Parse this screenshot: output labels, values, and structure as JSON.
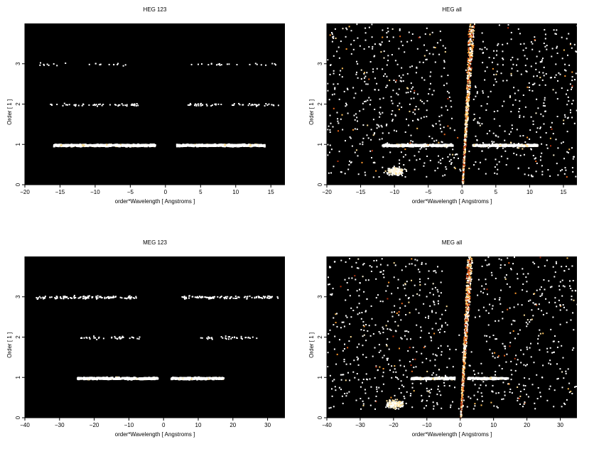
{
  "chart_data": [
    {
      "type": "heatmap",
      "title": "HEG 123",
      "xlabel": "order*Wavelength [ Angstroms ]",
      "ylabel": "Order [ 1 ]",
      "xlim": [
        -20,
        17
      ],
      "ylim": [
        0,
        4
      ],
      "xticks": [
        -20,
        -15,
        -10,
        -5,
        0,
        5,
        10,
        15
      ],
      "yticks": [
        0,
        1,
        2,
        3
      ],
      "background": "#000000",
      "bands": [
        {
          "order": 1,
          "x_ranges": [
            [
              -16,
              -1.5
            ],
            [
              1.5,
              14
            ]
          ],
          "intensity": "high"
        },
        {
          "order": 2,
          "x_ranges": [
            [
              -17,
              -4
            ],
            [
              3,
              16
            ]
          ],
          "intensity": "low"
        },
        {
          "order": 3,
          "x_ranges": [
            [
              -18,
              -5
            ],
            [
              3,
              16
            ]
          ],
          "intensity": "very low"
        }
      ]
    },
    {
      "type": "heatmap",
      "title": "HEG all",
      "xlabel": "order*Wavelength [ Angstroms ]",
      "ylabel": "Order [ 1 ]",
      "xlim": [
        -20,
        17
      ],
      "ylim": [
        0,
        4
      ],
      "xticks": [
        -20,
        -15,
        -10,
        -5,
        0,
        5,
        10,
        15
      ],
      "yticks": [
        0,
        1,
        2,
        3
      ],
      "background": "#000000",
      "bands": [
        {
          "order": 1,
          "x_ranges": [
            [
              -12,
              -1.5
            ],
            [
              1.5,
              11
            ]
          ],
          "intensity": "high"
        }
      ],
      "features": [
        "zeroth-order streak",
        "scattered background events",
        "low-order cluster near x=-10"
      ]
    },
    {
      "type": "heatmap",
      "title": "MEG 123",
      "xlabel": "order*Wavelength [ Angstroms ]",
      "ylabel": "Order [ 1 ]",
      "xlim": [
        -40,
        35
      ],
      "ylim": [
        0,
        4
      ],
      "xticks": [
        -40,
        -30,
        -20,
        -10,
        0,
        10,
        20,
        30
      ],
      "yticks": [
        0,
        1,
        2,
        3
      ],
      "background": "#000000",
      "bands": [
        {
          "order": 1,
          "x_ranges": [
            [
              -25,
              -2
            ],
            [
              2,
              17
            ]
          ],
          "intensity": "high"
        },
        {
          "order": 2,
          "x_ranges": [
            [
              -25,
              -7
            ],
            [
              10,
              27
            ]
          ],
          "intensity": "low"
        },
        {
          "order": 3,
          "x_ranges": [
            [
              -37,
              -8
            ],
            [
              5,
              33
            ]
          ],
          "intensity": "medium"
        }
      ]
    },
    {
      "type": "heatmap",
      "title": "MEG all",
      "xlabel": "order*Wavelength [ Angstroms ]",
      "ylabel": "Order [ 1 ]",
      "xlim": [
        -40,
        35
      ],
      "ylim": [
        0,
        4
      ],
      "xticks": [
        -40,
        -30,
        -20,
        -10,
        0,
        10,
        20,
        30
      ],
      "yticks": [
        0,
        1,
        2,
        3
      ],
      "background": "#000000",
      "bands": [
        {
          "order": 1,
          "x_ranges": [
            [
              -15,
              -2
            ],
            [
              2,
              14
            ]
          ],
          "intensity": "high"
        }
      ],
      "features": [
        "zeroth-order streak",
        "scattered background events",
        "low-order cluster near x=-20"
      ]
    }
  ]
}
